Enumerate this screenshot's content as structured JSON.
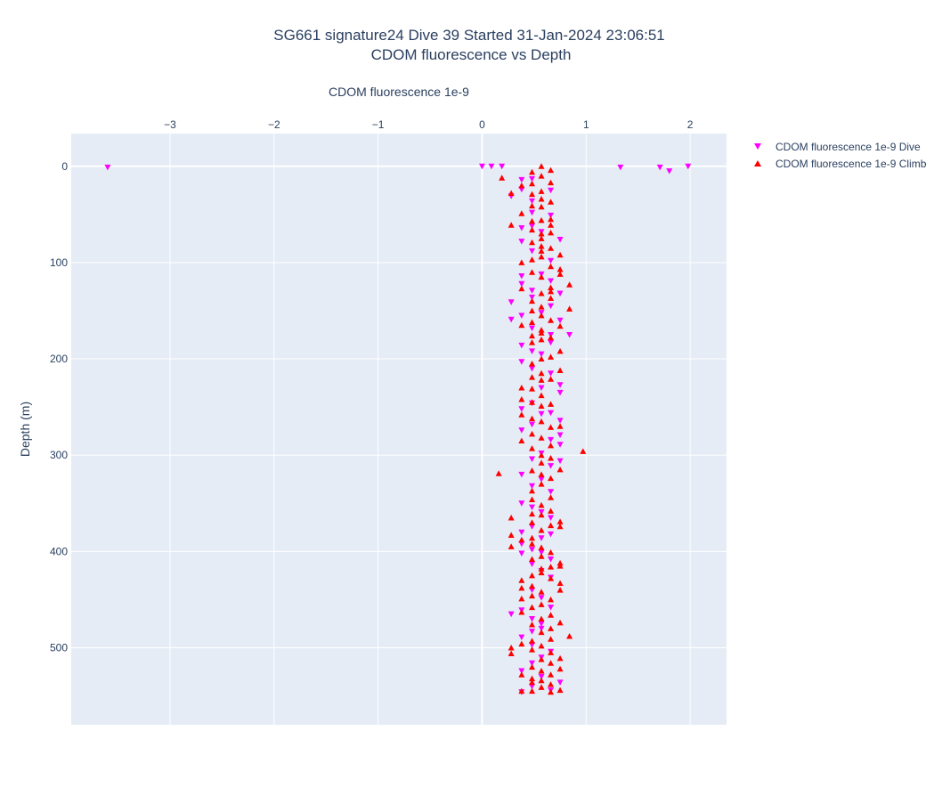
{
  "chart_data": {
    "type": "scatter",
    "title": "SG661 signature24 Dive 39 Started 31-Jan-2024 23:06:51",
    "subtitle": "CDOM fluorescence vs Depth",
    "xlabel": "CDOM fluorescence 1e-9",
    "ylabel": "Depth (m)",
    "xlim": [
      -3.95,
      2.35
    ],
    "ylim": [
      580,
      -34
    ],
    "x_ticks": [
      -3,
      -2,
      -1,
      0,
      1,
      2
    ],
    "x_tick_labels": [
      "−3",
      "−2",
      "−1",
      "0",
      "1",
      "2"
    ],
    "y_ticks": [
      0,
      100,
      200,
      300,
      400,
      500
    ],
    "y_tick_labels": [
      "0",
      "100",
      "200",
      "300",
      "400",
      "500"
    ],
    "x_axis_position": "top",
    "y_reversed": true,
    "grid": true,
    "legend_position": "top-right",
    "series": [
      {
        "name": "CDOM fluorescence 1e-9 Dive",
        "color": "#ff00ff",
        "marker": "triangle-down",
        "points": [
          [
            -3.6,
            1
          ],
          [
            0.0,
            0
          ],
          [
            0.09,
            0
          ],
          [
            0.19,
            0
          ],
          [
            1.33,
            1
          ],
          [
            1.71,
            1
          ],
          [
            1.8,
            5
          ],
          [
            1.98,
            0
          ],
          [
            0.38,
            14
          ],
          [
            0.48,
            13
          ],
          [
            0.28,
            31
          ],
          [
            0.38,
            24
          ],
          [
            0.48,
            36
          ],
          [
            0.66,
            25
          ],
          [
            0.48,
            48
          ],
          [
            0.66,
            51
          ],
          [
            0.38,
            64
          ],
          [
            0.48,
            62
          ],
          [
            0.57,
            68
          ],
          [
            0.38,
            78
          ],
          [
            0.75,
            76
          ],
          [
            0.48,
            88
          ],
          [
            0.66,
            98
          ],
          [
            0.38,
            114
          ],
          [
            0.57,
            112
          ],
          [
            0.66,
            119
          ],
          [
            0.38,
            122
          ],
          [
            0.48,
            129
          ],
          [
            0.75,
            132
          ],
          [
            0.28,
            141
          ],
          [
            0.48,
            136
          ],
          [
            0.66,
            145
          ],
          [
            0.57,
            152
          ],
          [
            0.28,
            159
          ],
          [
            0.38,
            155
          ],
          [
            0.48,
            168
          ],
          [
            0.75,
            160
          ],
          [
            0.66,
            175
          ],
          [
            0.38,
            186
          ],
          [
            0.48,
            192
          ],
          [
            0.57,
            195
          ],
          [
            0.66,
            183
          ],
          [
            0.84,
            175
          ],
          [
            0.38,
            203
          ],
          [
            0.48,
            210
          ],
          [
            0.66,
            215
          ],
          [
            0.75,
            227
          ],
          [
            0.75,
            235
          ],
          [
            0.57,
            230
          ],
          [
            0.48,
            246
          ],
          [
            0.38,
            252
          ],
          [
            0.57,
            257
          ],
          [
            0.66,
            256
          ],
          [
            0.75,
            264
          ],
          [
            0.48,
            268
          ],
          [
            0.38,
            274
          ],
          [
            0.75,
            279
          ],
          [
            0.66,
            284
          ],
          [
            0.75,
            289
          ],
          [
            0.57,
            298
          ],
          [
            0.48,
            304
          ],
          [
            0.75,
            306
          ],
          [
            0.66,
            311
          ],
          [
            0.38,
            320
          ],
          [
            0.57,
            325
          ],
          [
            0.48,
            332
          ],
          [
            0.66,
            338
          ],
          [
            0.38,
            350
          ],
          [
            0.48,
            354
          ],
          [
            0.57,
            359
          ],
          [
            0.66,
            365
          ],
          [
            0.38,
            380
          ],
          [
            0.48,
            374
          ],
          [
            0.57,
            386
          ],
          [
            0.66,
            382
          ],
          [
            0.38,
            392
          ],
          [
            0.48,
            398
          ],
          [
            0.38,
            402
          ],
          [
            0.57,
            401
          ],
          [
            0.66,
            408
          ],
          [
            0.48,
            413
          ],
          [
            0.57,
            420
          ],
          [
            0.66,
            427
          ],
          [
            0.48,
            440
          ],
          [
            0.57,
            448
          ],
          [
            0.28,
            465
          ],
          [
            0.38,
            461
          ],
          [
            0.48,
            470
          ],
          [
            0.57,
            475
          ],
          [
            0.66,
            458
          ],
          [
            0.48,
            483
          ],
          [
            0.57,
            480
          ],
          [
            0.38,
            489
          ],
          [
            0.48,
            497
          ],
          [
            0.66,
            504
          ],
          [
            0.57,
            510
          ],
          [
            0.48,
            516
          ],
          [
            0.38,
            524
          ],
          [
            0.57,
            530
          ],
          [
            0.75,
            536
          ],
          [
            0.48,
            540
          ],
          [
            0.66,
            544
          ],
          [
            0.38,
            546
          ]
        ]
      },
      {
        "name": "CDOM fluorescence 1e-9 Climb",
        "color": "#ff0000",
        "marker": "triangle-up",
        "points": [
          [
            0.57,
            0
          ],
          [
            0.66,
            4
          ],
          [
            0.19,
            12
          ],
          [
            0.48,
            6
          ],
          [
            0.57,
            10
          ],
          [
            0.66,
            17
          ],
          [
            0.38,
            20
          ],
          [
            0.48,
            18
          ],
          [
            0.57,
            26
          ],
          [
            0.48,
            29
          ],
          [
            0.28,
            28
          ],
          [
            0.57,
            34
          ],
          [
            0.66,
            37
          ],
          [
            0.48,
            41
          ],
          [
            0.57,
            42
          ],
          [
            0.38,
            49
          ],
          [
            0.66,
            55
          ],
          [
            0.57,
            56
          ],
          [
            0.28,
            61
          ],
          [
            0.48,
            57
          ],
          [
            0.66,
            61
          ],
          [
            0.48,
            66
          ],
          [
            0.57,
            70
          ],
          [
            0.66,
            69
          ],
          [
            0.57,
            75
          ],
          [
            0.48,
            79
          ],
          [
            0.57,
            83
          ],
          [
            0.66,
            85
          ],
          [
            0.57,
            88
          ],
          [
            0.75,
            92
          ],
          [
            0.48,
            97
          ],
          [
            0.57,
            94
          ],
          [
            0.38,
            100
          ],
          [
            0.66,
            104
          ],
          [
            0.75,
            107
          ],
          [
            0.48,
            110
          ],
          [
            0.57,
            115
          ],
          [
            0.75,
            112
          ],
          [
            0.84,
            123
          ],
          [
            0.66,
            126
          ],
          [
            0.57,
            132
          ],
          [
            0.66,
            130
          ],
          [
            0.38,
            127
          ],
          [
            0.48,
            140
          ],
          [
            0.66,
            137
          ],
          [
            0.57,
            146
          ],
          [
            0.84,
            148
          ],
          [
            0.48,
            150
          ],
          [
            0.57,
            155
          ],
          [
            0.38,
            165
          ],
          [
            0.48,
            162
          ],
          [
            0.66,
            160
          ],
          [
            0.75,
            166
          ],
          [
            0.57,
            170
          ],
          [
            0.48,
            176
          ],
          [
            0.57,
            173
          ],
          [
            0.66,
            178
          ],
          [
            0.48,
            183
          ],
          [
            0.57,
            180
          ],
          [
            0.75,
            192
          ],
          [
            0.66,
            198
          ],
          [
            0.57,
            200
          ],
          [
            0.48,
            205
          ],
          [
            0.75,
            212
          ],
          [
            0.57,
            215
          ],
          [
            0.48,
            219
          ],
          [
            0.57,
            222
          ],
          [
            0.66,
            221
          ],
          [
            0.38,
            230
          ],
          [
            0.48,
            231
          ],
          [
            0.57,
            238
          ],
          [
            0.38,
            242
          ],
          [
            0.48,
            245
          ],
          [
            0.57,
            249
          ],
          [
            0.66,
            247
          ],
          [
            0.38,
            258
          ],
          [
            0.48,
            262
          ],
          [
            0.57,
            265
          ],
          [
            0.66,
            271
          ],
          [
            0.75,
            270
          ],
          [
            0.48,
            278
          ],
          [
            0.57,
            282
          ],
          [
            0.38,
            285
          ],
          [
            0.66,
            290
          ],
          [
            0.97,
            296
          ],
          [
            0.48,
            293
          ],
          [
            0.57,
            300
          ],
          [
            0.66,
            303
          ],
          [
            0.57,
            308
          ],
          [
            0.75,
            315
          ],
          [
            0.48,
            316
          ],
          [
            0.57,
            320
          ],
          [
            0.16,
            319
          ],
          [
            0.66,
            324
          ],
          [
            0.57,
            330
          ],
          [
            0.48,
            337
          ],
          [
            0.66,
            344
          ],
          [
            0.48,
            346
          ],
          [
            0.57,
            352
          ],
          [
            0.66,
            358
          ],
          [
            0.48,
            361
          ],
          [
            0.57,
            362
          ],
          [
            0.28,
            365
          ],
          [
            0.75,
            369
          ],
          [
            0.48,
            370
          ],
          [
            0.66,
            373
          ],
          [
            0.57,
            378
          ],
          [
            0.75,
            374
          ],
          [
            0.28,
            383
          ],
          [
            0.48,
            386
          ],
          [
            0.38,
            388
          ],
          [
            0.28,
            395
          ],
          [
            0.48,
            392
          ],
          [
            0.57,
            396
          ],
          [
            0.66,
            401
          ],
          [
            0.48,
            408
          ],
          [
            0.57,
            405
          ],
          [
            0.75,
            412
          ],
          [
            0.66,
            416
          ],
          [
            0.57,
            418
          ],
          [
            0.75,
            415
          ],
          [
            0.48,
            425
          ],
          [
            0.57,
            422
          ],
          [
            0.38,
            430
          ],
          [
            0.66,
            428
          ],
          [
            0.75,
            433
          ],
          [
            0.48,
            436
          ],
          [
            0.38,
            438
          ],
          [
            0.57,
            442
          ],
          [
            0.75,
            440
          ],
          [
            0.48,
            446
          ],
          [
            0.66,
            450
          ],
          [
            0.38,
            449
          ],
          [
            0.57,
            455
          ],
          [
            0.48,
            458
          ],
          [
            0.66,
            466
          ],
          [
            0.38,
            463
          ],
          [
            0.57,
            470
          ],
          [
            0.48,
            476
          ],
          [
            0.75,
            474
          ],
          [
            0.66,
            480
          ],
          [
            0.57,
            484
          ],
          [
            0.84,
            488
          ],
          [
            0.66,
            491
          ],
          [
            0.48,
            493
          ],
          [
            0.57,
            498
          ],
          [
            0.38,
            496
          ],
          [
            0.28,
            500
          ],
          [
            0.48,
            502
          ],
          [
            0.66,
            505
          ],
          [
            0.28,
            506
          ],
          [
            0.57,
            512
          ],
          [
            0.75,
            511
          ],
          [
            0.66,
            516
          ],
          [
            0.48,
            520
          ],
          [
            0.57,
            524
          ],
          [
            0.75,
            522
          ],
          [
            0.38,
            528
          ],
          [
            0.66,
            528
          ],
          [
            0.48,
            532
          ],
          [
            0.57,
            534
          ],
          [
            0.66,
            538
          ],
          [
            0.48,
            536
          ],
          [
            0.57,
            541
          ],
          [
            0.75,
            544
          ],
          [
            0.48,
            545
          ],
          [
            0.66,
            546
          ],
          [
            0.38,
            545
          ]
        ]
      }
    ]
  }
}
